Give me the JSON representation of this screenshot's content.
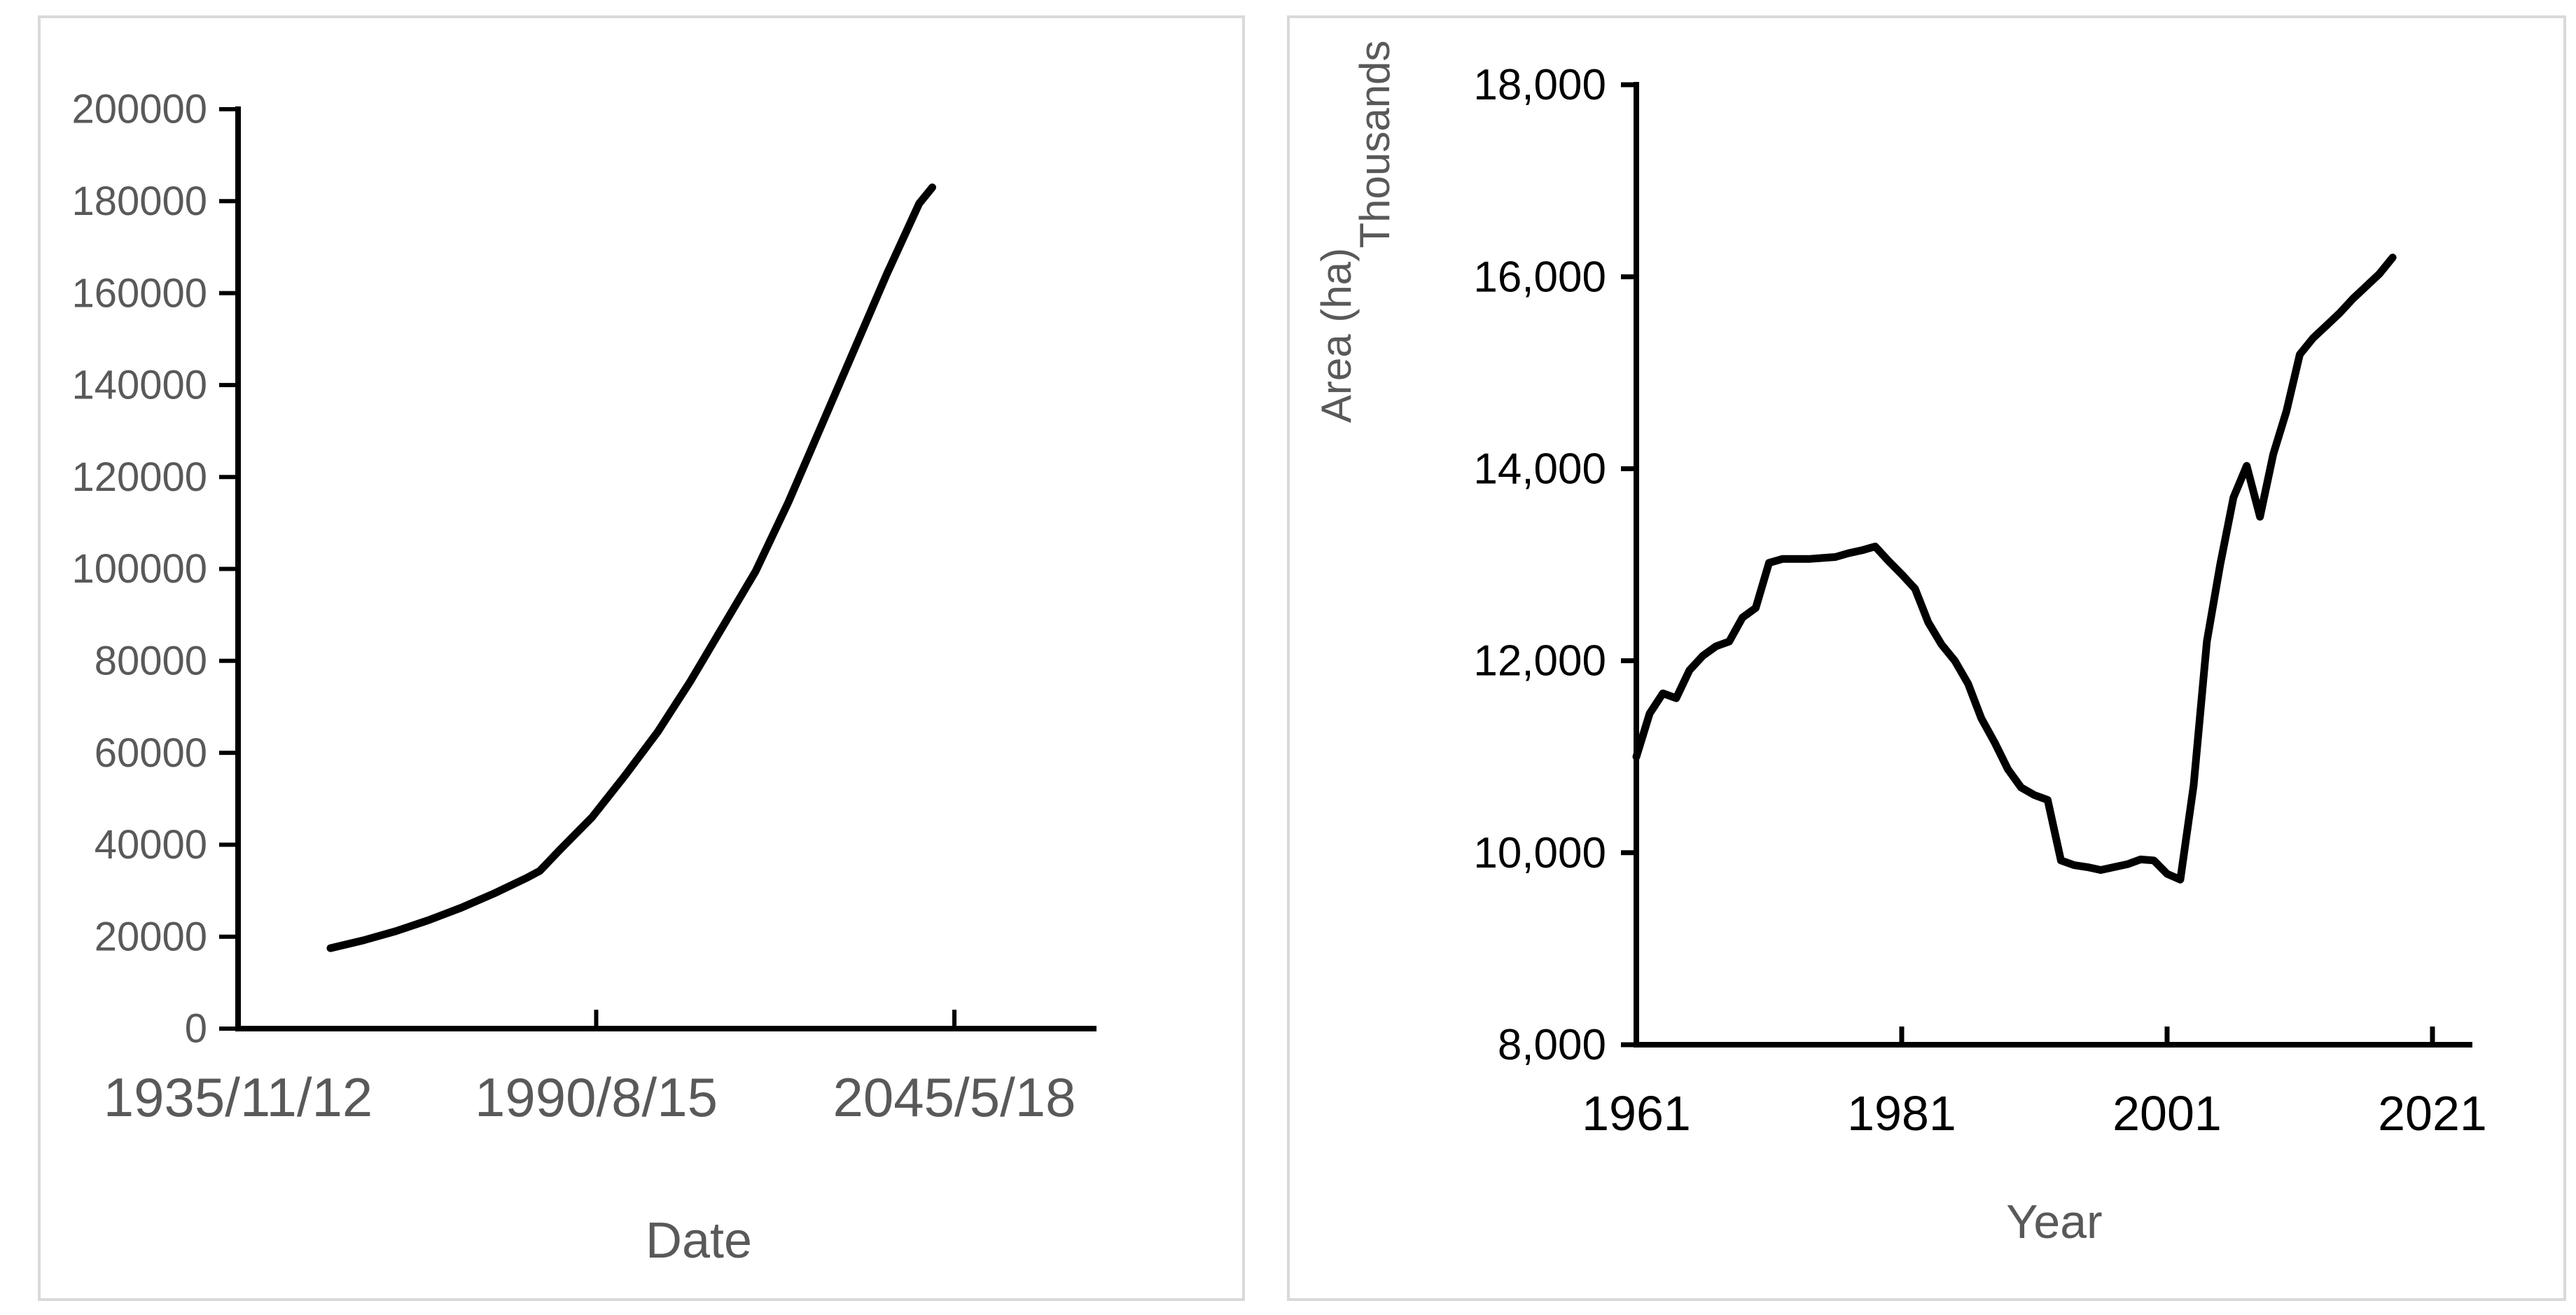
{
  "page": {
    "background": "#ffffff",
    "panel_border_color": "#d9d9d9"
  },
  "chart_data": [
    {
      "type": "line",
      "title": "",
      "xlabel": "Date",
      "ylabel": "",
      "grid": false,
      "legend": "none",
      "xlim_years": [
        1935.87,
        2067.0
      ],
      "ylim": [
        0,
        200000
      ],
      "x_tick_labels": [
        "1935/11/12",
        "1990/8/15",
        "2045/5/18"
      ],
      "x_tick_years": [
        1935.87,
        1990.62,
        2045.38
      ],
      "x_tick_has_mark": [
        false,
        true,
        true
      ],
      "y_tick_labels": [
        "0",
        "20000",
        "40000",
        "60000",
        "80000",
        "100000",
        "120000",
        "140000",
        "160000",
        "180000",
        "200000"
      ],
      "y_tick_values": [
        0,
        20000,
        40000,
        60000,
        80000,
        100000,
        120000,
        140000,
        160000,
        180000,
        200000
      ],
      "line_color": "#000000",
      "tick_label_color": "#595959",
      "axis_title_color": "#595959",
      "axis_color": "#000000",
      "series": [
        {
          "name": "value-by-date",
          "x": [
            1950,
            1955,
            1960,
            1965,
            1970,
            1975,
            1980,
            1982,
            1985,
            1990,
            1995,
            2000,
            2005,
            2010,
            2015,
            2020,
            2025,
            2030,
            2035,
            2040,
            2042
          ],
          "y": [
            17500,
            19200,
            21200,
            23600,
            26300,
            29400,
            32800,
            34300,
            38800,
            46000,
            55000,
            64500,
            75500,
            87500,
            99500,
            114500,
            131000,
            147500,
            164000,
            179500,
            183000
          ]
        }
      ]
    },
    {
      "type": "line",
      "title": "",
      "xlabel": "Year",
      "ylabel": "Area (ha)",
      "y_units_label": "Thousands",
      "grid": false,
      "legend": "none",
      "xlim_years": [
        1961,
        2024.5
      ],
      "ylim": [
        8000,
        18000
      ],
      "x_tick_labels": [
        "1961",
        "1981",
        "2001",
        "2021"
      ],
      "x_tick_years": [
        1961,
        1981,
        2001,
        2021
      ],
      "x_tick_has_mark": [
        false,
        true,
        true,
        true
      ],
      "y_tick_labels": [
        "8,000",
        "10,000",
        "12,000",
        "14,000",
        "16,000",
        "18,000"
      ],
      "y_tick_values": [
        8000,
        10000,
        12000,
        14000,
        16000,
        18000
      ],
      "line_color": "#000000",
      "tick_label_color": "#000000",
      "axis_title_color": "#595959",
      "axis_color": "#000000",
      "series": [
        {
          "name": "area-ha-thousands",
          "x": [
            1961,
            1962,
            1963,
            1964,
            1965,
            1966,
            1967,
            1968,
            1969,
            1970,
            1971,
            1972,
            1973,
            1974,
            1975,
            1976,
            1977,
            1978,
            1979,
            1980,
            1981,
            1982,
            1983,
            1984,
            1985,
            1986,
            1987,
            1988,
            1989,
            1990,
            1991,
            1992,
            1993,
            1994,
            1995,
            1996,
            1997,
            1998,
            1999,
            2000,
            2001,
            2002,
            2003,
            2004,
            2005,
            2006,
            2007,
            2008,
            2009,
            2010,
            2011,
            2012,
            2013,
            2014,
            2015,
            2016,
            2017,
            2018
          ],
          "y": [
            11000,
            11450,
            11660,
            11610,
            11900,
            12050,
            12150,
            12200,
            12450,
            12550,
            13020,
            13060,
            13060,
            13060,
            13070,
            13080,
            13120,
            13150,
            13190,
            13040,
            12900,
            12750,
            12400,
            12170,
            12000,
            11760,
            11400,
            11150,
            10870,
            10680,
            10600,
            10550,
            9920,
            9870,
            9850,
            9820,
            9850,
            9880,
            9930,
            9920,
            9780,
            9720,
            10700,
            12200,
            13000,
            13700,
            14030,
            13500,
            14150,
            14600,
            15190,
            15360,
            15490,
            15620,
            15770,
            15900,
            16030,
            16200
          ]
        }
      ]
    }
  ]
}
